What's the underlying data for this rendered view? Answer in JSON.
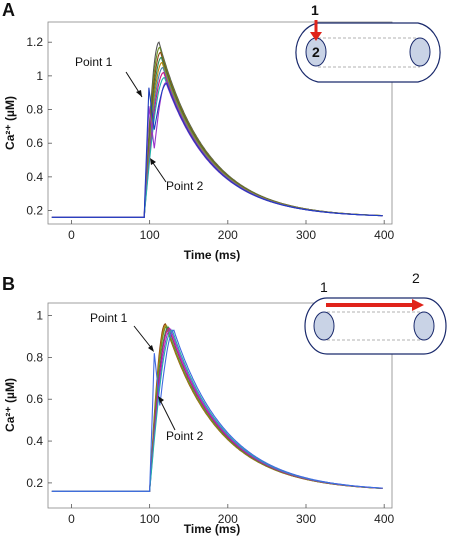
{
  "chart_data": [
    {
      "type": "line",
      "panel": "A",
      "xlabel": "Time (ms)",
      "ylabel": "Ca²⁺ (µM)",
      "xlim": [
        -30,
        410
      ],
      "ylim": [
        0.12,
        1.32
      ],
      "xticks": [
        "0",
        "100",
        "200",
        "300",
        "400"
      ],
      "yticks": [
        "0.2",
        "0.4",
        "0.6",
        "0.8",
        "1",
        "1.2"
      ],
      "annotations": [
        "Point 1",
        "Point 2"
      ],
      "inset": {
        "labels": [
          "1",
          "2"
        ]
      },
      "baseline": 0.16,
      "rise_start": 93,
      "series": [
        {
          "color": "#555555",
          "early_peak": 0.0,
          "peak": 1.2,
          "peak_t": 112
        },
        {
          "color": "#6b8e23",
          "early_peak": 0.0,
          "peak": 1.17,
          "peak_t": 113
        },
        {
          "color": "#8b4513",
          "early_peak": 0.0,
          "peak": 1.14,
          "peak_t": 114
        },
        {
          "color": "#2e8b57",
          "early_peak": 0.0,
          "peak": 1.11,
          "peak_t": 115
        },
        {
          "color": "#b8860b",
          "early_peak": 0.0,
          "peak": 1.08,
          "peak_t": 116
        },
        {
          "color": "#4682b4",
          "early_peak": 0.0,
          "peak": 1.05,
          "peak_t": 117
        },
        {
          "color": "#c71585",
          "early_peak": 0.0,
          "peak": 1.02,
          "peak_t": 118
        },
        {
          "color": "#20b2aa",
          "early_peak": 0.0,
          "peak": 0.99,
          "peak_t": 119
        },
        {
          "color": "#9932cc",
          "early_peak": 0.82,
          "peak": 0.96,
          "peak_t": 121
        },
        {
          "color": "#1f3fbf",
          "early_peak": 0.93,
          "peak": 0.955,
          "peak_t": 122
        }
      ]
    },
    {
      "type": "line",
      "panel": "B",
      "xlabel": "Time (ms)",
      "ylabel": "Ca²⁺ (µM)",
      "xlim": [
        -30,
        410
      ],
      "ylim": [
        0.08,
        1.06
      ],
      "xticks": [
        "0",
        "100",
        "200",
        "300",
        "400"
      ],
      "yticks": [
        "0.2",
        "0.4",
        "0.6",
        "0.8",
        "1"
      ],
      "annotations": [
        "Point 1",
        "Point 2"
      ],
      "inset": {
        "labels": [
          "1",
          "2"
        ]
      },
      "baseline": 0.16,
      "rise_start": 100,
      "series": [
        {
          "color": "#8b4513",
          "early_peak": 0.0,
          "peak": 0.96,
          "peak_t": 120
        },
        {
          "color": "#b8860b",
          "early_peak": 0.0,
          "peak": 0.955,
          "peak_t": 121
        },
        {
          "color": "#6b8e23",
          "early_peak": 0.0,
          "peak": 0.95,
          "peak_t": 122
        },
        {
          "color": "#2e8b57",
          "early_peak": 0.0,
          "peak": 0.945,
          "peak_t": 124
        },
        {
          "color": "#c71585",
          "early_peak": 0.0,
          "peak": 0.94,
          "peak_t": 125
        },
        {
          "color": "#9932cc",
          "early_peak": 0.0,
          "peak": 0.935,
          "peak_t": 127
        },
        {
          "color": "#20b2aa",
          "early_peak": 0.0,
          "peak": 0.93,
          "peak_t": 129
        },
        {
          "color": "#4169e1",
          "early_peak": 0.82,
          "peak": 0.93,
          "peak_t": 131
        }
      ]
    }
  ]
}
